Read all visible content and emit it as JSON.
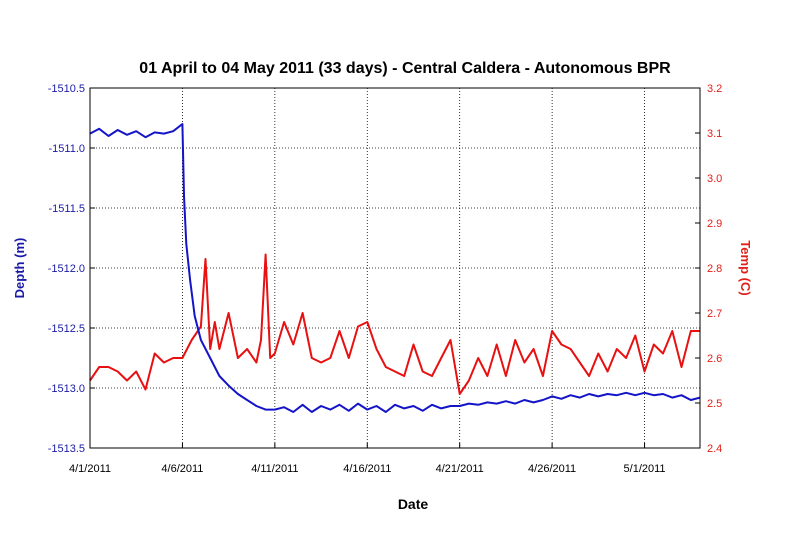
{
  "chart_data": {
    "type": "line",
    "title": "01 April to 04 May 2011 (33 days) - Central Caldera - Autonomous BPR",
    "xlabel": "Date",
    "ylabel_left": "Depth (m)",
    "ylabel_right": "Temp (C)",
    "xlim": [
      "2011-04-01",
      "2011-05-04"
    ],
    "ylim_left": [
      -1513.5,
      -1510.5
    ],
    "ylim_right": [
      2.4,
      3.2
    ],
    "grid": true,
    "x_ticks": [
      "2011-04-01",
      "2011-04-06",
      "2011-04-11",
      "2011-04-16",
      "2011-04-21",
      "2011-04-26",
      "2011-05-01"
    ],
    "x_tick_labels": [
      "4/1/2011",
      "4/6/2011",
      "4/11/2011",
      "4/16/2011",
      "4/21/2011",
      "4/26/2011",
      "5/1/2011"
    ],
    "y_left_ticks": [
      "-1510.5",
      "-1511.0",
      "-1511.5",
      "-1512.0",
      "-1512.5",
      "-1513.0",
      "-1513.5"
    ],
    "y_right_ticks": [
      "3.2",
      "3.1",
      "3.0",
      "2.9",
      "2.8",
      "2.7",
      "2.6",
      "2.5",
      "2.4"
    ],
    "colors": {
      "depth": "#1414c8",
      "temp": "#e81010",
      "left_axis_text": "#1a1aa8",
      "right_axis_text": "#e0201a"
    },
    "series": [
      {
        "axis": "left",
        "x": [
          "2011-04-01",
          "2011-04-01T12:00",
          "2011-04-02",
          "2011-04-02T12:00",
          "2011-04-03",
          "2011-04-03T12:00",
          "2011-04-04",
          "2011-04-04T12:00",
          "2011-04-05",
          "2011-04-05T12:00",
          "2011-04-06",
          "2011-04-06T02:00",
          "2011-04-06T05:00",
          "2011-04-06T10:00",
          "2011-04-06T16:00",
          "2011-04-07",
          "2011-04-07T12:00",
          "2011-04-08",
          "2011-04-08T12:00",
          "2011-04-09",
          "2011-04-09T12:00",
          "2011-04-10",
          "2011-04-10T12:00",
          "2011-04-11",
          "2011-04-11T12:00",
          "2011-04-12",
          "2011-04-12T12:00",
          "2011-04-13",
          "2011-04-13T12:00",
          "2011-04-14",
          "2011-04-14T12:00",
          "2011-04-15",
          "2011-04-15T12:00",
          "2011-04-16",
          "2011-04-16T12:00",
          "2011-04-17",
          "2011-04-17T12:00",
          "2011-04-18",
          "2011-04-18T12:00",
          "2011-04-19",
          "2011-04-19T12:00",
          "2011-04-20",
          "2011-04-20T12:00",
          "2011-04-21",
          "2011-04-21T12:00",
          "2011-04-22",
          "2011-04-22T12:00",
          "2011-04-23",
          "2011-04-23T12:00",
          "2011-04-24",
          "2011-04-24T12:00",
          "2011-04-25",
          "2011-04-25T12:00",
          "2011-04-26",
          "2011-04-26T12:00",
          "2011-04-27",
          "2011-04-27T12:00",
          "2011-04-28",
          "2011-04-28T12:00",
          "2011-04-29",
          "2011-04-29T12:00",
          "2011-04-30",
          "2011-04-30T12:00",
          "2011-05-01",
          "2011-05-01T12:00",
          "2011-05-02",
          "2011-05-02T12:00",
          "2011-05-03",
          "2011-05-03T12:00",
          "2011-05-04"
        ],
        "y": [
          -1510.88,
          -1510.84,
          -1510.9,
          -1510.85,
          -1510.89,
          -1510.86,
          -1510.91,
          -1510.87,
          -1510.88,
          -1510.86,
          -1510.8,
          -1511.4,
          -1511.8,
          -1512.1,
          -1512.4,
          -1512.6,
          -1512.75,
          -1512.9,
          -1512.98,
          -1513.05,
          -1513.1,
          -1513.15,
          -1513.18,
          -1513.18,
          -1513.16,
          -1513.2,
          -1513.14,
          -1513.2,
          -1513.15,
          -1513.18,
          -1513.14,
          -1513.19,
          -1513.13,
          -1513.18,
          -1513.15,
          -1513.2,
          -1513.14,
          -1513.17,
          -1513.15,
          -1513.19,
          -1513.14,
          -1513.17,
          -1513.15,
          -1513.15,
          -1513.13,
          -1513.14,
          -1513.12,
          -1513.13,
          -1513.11,
          -1513.13,
          -1513.1,
          -1513.12,
          -1513.1,
          -1513.07,
          -1513.09,
          -1513.06,
          -1513.08,
          -1513.05,
          -1513.07,
          -1513.05,
          -1513.06,
          -1513.04,
          -1513.06,
          -1513.04,
          -1513.06,
          -1513.05,
          -1513.08,
          -1513.06,
          -1513.1,
          -1513.08
        ]
      },
      {
        "axis": "right",
        "x": [
          "2011-04-01",
          "2011-04-01T12:00",
          "2011-04-02",
          "2011-04-02T12:00",
          "2011-04-03",
          "2011-04-03T12:00",
          "2011-04-04",
          "2011-04-04T12:00",
          "2011-04-05",
          "2011-04-05T12:00",
          "2011-04-06",
          "2011-04-06T12:00",
          "2011-04-07",
          "2011-04-07T06:00",
          "2011-04-07T12:00",
          "2011-04-07T18:00",
          "2011-04-08",
          "2011-04-08T12:00",
          "2011-04-09",
          "2011-04-09T12:00",
          "2011-04-10",
          "2011-04-10T06:00",
          "2011-04-10T12:00",
          "2011-04-10T18:00",
          "2011-04-11",
          "2011-04-11T12:00",
          "2011-04-12",
          "2011-04-12T12:00",
          "2011-04-13",
          "2011-04-13T12:00",
          "2011-04-14",
          "2011-04-14T12:00",
          "2011-04-15",
          "2011-04-15T12:00",
          "2011-04-16",
          "2011-04-16T12:00",
          "2011-04-17",
          "2011-04-17T12:00",
          "2011-04-18",
          "2011-04-18T12:00",
          "2011-04-19",
          "2011-04-19T12:00",
          "2011-04-20",
          "2011-04-20T12:00",
          "2011-04-21",
          "2011-04-21T12:00",
          "2011-04-22",
          "2011-04-22T12:00",
          "2011-04-23",
          "2011-04-23T12:00",
          "2011-04-24",
          "2011-04-24T12:00",
          "2011-04-25",
          "2011-04-25T12:00",
          "2011-04-26",
          "2011-04-26T12:00",
          "2011-04-27",
          "2011-04-27T12:00",
          "2011-04-28",
          "2011-04-28T12:00",
          "2011-04-29",
          "2011-04-29T12:00",
          "2011-04-30",
          "2011-04-30T12:00",
          "2011-05-01",
          "2011-05-01T12:00",
          "2011-05-02",
          "2011-05-02T12:00",
          "2011-05-03",
          "2011-05-03T12:00",
          "2011-05-04"
        ],
        "y": [
          2.55,
          2.58,
          2.58,
          2.57,
          2.55,
          2.57,
          2.53,
          2.61,
          2.59,
          2.6,
          2.6,
          2.64,
          2.67,
          2.82,
          2.62,
          2.68,
          2.62,
          2.7,
          2.6,
          2.62,
          2.59,
          2.64,
          2.83,
          2.6,
          2.61,
          2.68,
          2.63,
          2.7,
          2.6,
          2.59,
          2.6,
          2.66,
          2.6,
          2.67,
          2.68,
          2.62,
          2.58,
          2.57,
          2.56,
          2.63,
          2.57,
          2.56,
          2.6,
          2.64,
          2.52,
          2.55,
          2.6,
          2.56,
          2.63,
          2.56,
          2.64,
          2.59,
          2.62,
          2.56,
          2.66,
          2.63,
          2.62,
          2.59,
          2.56,
          2.61,
          2.57,
          2.62,
          2.6,
          2.65,
          2.57,
          2.63,
          2.61,
          2.66,
          2.58,
          2.66,
          2.66
        ]
      }
    ]
  }
}
